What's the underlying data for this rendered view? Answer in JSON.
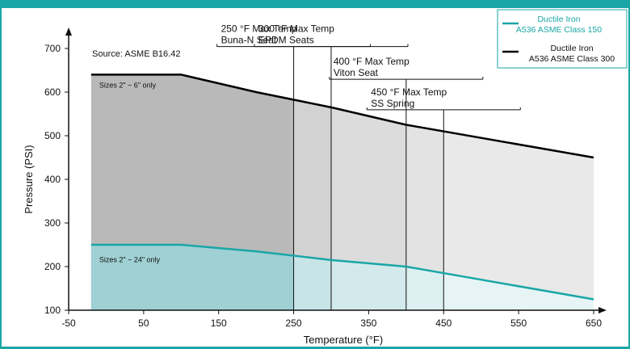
{
  "chart_data": {
    "type": "area",
    "title": "",
    "xlabel": "Temperature (°F)",
    "ylabel": "Pressure (PSI)",
    "xlim": [
      -50,
      650
    ],
    "ylim": [
      100,
      700
    ],
    "xticks": [
      -50,
      50,
      150,
      250,
      350,
      450,
      550,
      650
    ],
    "yticks": [
      100,
      200,
      300,
      400,
      500,
      600,
      700
    ],
    "grid": false,
    "legend_position": "top-right",
    "source_note": "Source: ASME B16.42",
    "series": [
      {
        "name_line1": "Ductile Iron",
        "name_line2": "A536 ASME Class 150",
        "color": "#1aa6a6",
        "fill": "#b9dde0",
        "x": [
          -20,
          100,
          200,
          300,
          400,
          500,
          600,
          650
        ],
        "y": [
          250,
          250,
          235,
          215,
          200,
          170,
          140,
          125
        ],
        "band_label": "Sizes 2\" ~ 24\" only"
      },
      {
        "name_line1": "Ductile Iron",
        "name_line2": "A536 ASME Class 300",
        "color": "#000000",
        "fill": "#bcbcbc",
        "x": [
          -20,
          100,
          200,
          300,
          400,
          500,
          600,
          650
        ],
        "y": [
          640,
          640,
          600,
          565,
          525,
          495,
          465,
          450
        ],
        "band_label": "Sizes 2\" ~ 6\" only"
      }
    ],
    "annotations": [
      {
        "x": 250,
        "line1": "250 °F Max Temp",
        "line2": "Buna-N Seat",
        "label_y": 760
      },
      {
        "x": 300,
        "line1": "300 °F Max Temp",
        "line2": "EPDM Seats",
        "label_y": 760
      },
      {
        "x": 400,
        "line1": "400 °F Max Temp",
        "line2": "Viton Seat",
        "label_y": 685
      },
      {
        "x": 450,
        "line1": "450 °F Max Temp",
        "line2": "SS Spring",
        "label_y": 615
      }
    ]
  }
}
